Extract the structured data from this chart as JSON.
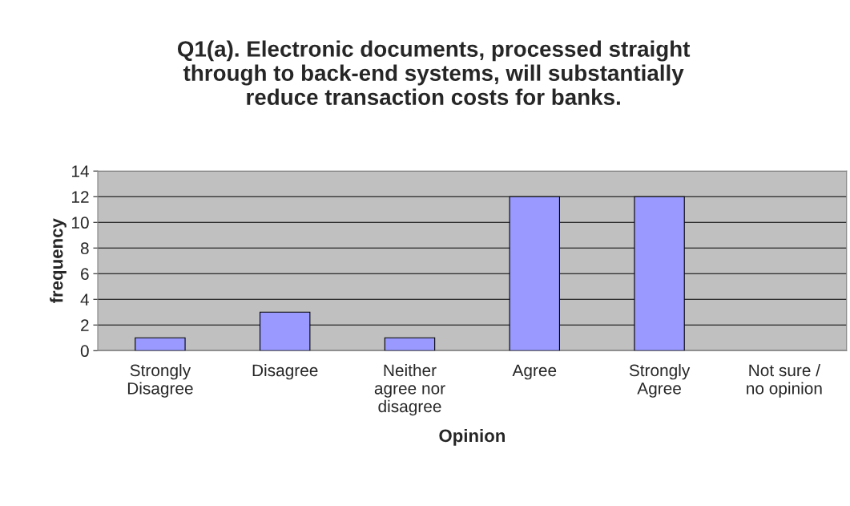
{
  "chart_data": {
    "type": "bar",
    "title": "Q1(a). Electronic documents, processed straight\nthrough to back-end systems, will substantially\nreduce transaction costs for banks.",
    "xlabel": "Opinion",
    "ylabel": "frequency",
    "categories": [
      "Strongly\nDisagree",
      "Disagree",
      "Neither\nagree nor\ndisagree",
      "Agree",
      "Strongly\nAgree",
      "Not sure /\nno opinion"
    ],
    "values": [
      1,
      3,
      1,
      12,
      12,
      0
    ],
    "color": "#9999ff",
    "ylim": [
      0,
      14
    ],
    "yticks": [
      0,
      2,
      4,
      6,
      8,
      10,
      12,
      14
    ],
    "grid": "y",
    "legend": false
  }
}
